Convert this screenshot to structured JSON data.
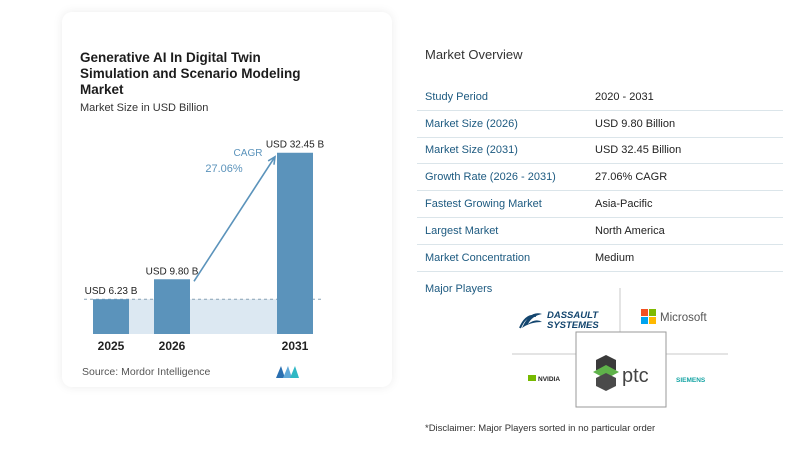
{
  "chart_data": {
    "type": "bar",
    "title": "Generative AI In Digital Twin Simulation and Scenario Modeling Market",
    "subtitle": "Market Size in USD Billion",
    "categories": [
      "2025",
      "2026",
      "2031"
    ],
    "values": [
      6.23,
      9.8,
      32.45
    ],
    "value_labels": [
      "USD 6.23 B",
      "USD 9.80 B",
      "USD 32.45 B"
    ],
    "cagr_label": "CAGR",
    "cagr_value": "27.06%",
    "ylim": [
      0,
      35
    ],
    "colors": {
      "bar": "#5b93bb",
      "bar_light": "#dce8f2",
      "arrow": "#5b93bb"
    }
  },
  "source": "Source:  Mordor Intelligence",
  "overview": {
    "title": "Market Overview",
    "rows": [
      {
        "key": "Study Period",
        "value": "2020 - 2031"
      },
      {
        "key": "Market Size (2026)",
        "value": "USD 9.80 Billion"
      },
      {
        "key": "Market Size (2031)",
        "value": "USD 32.45 Billion"
      },
      {
        "key": "Growth Rate (2026 - 2031)",
        "value": "27.06% CAGR"
      },
      {
        "key": "Fastest Growing Market",
        "value": "Asia-Pacific"
      },
      {
        "key": "Largest Market",
        "value": "North America"
      },
      {
        "key": "Market Concentration",
        "value": "Medium"
      }
    ]
  },
  "players": {
    "label": "Major Players",
    "names": [
      "DASSAULT SYSTEMES",
      "Microsoft",
      "NVIDIA",
      "ptc",
      "SIEMENS"
    ]
  },
  "disclaimer": "*Disclaimer: Major Players sorted in no particular order"
}
